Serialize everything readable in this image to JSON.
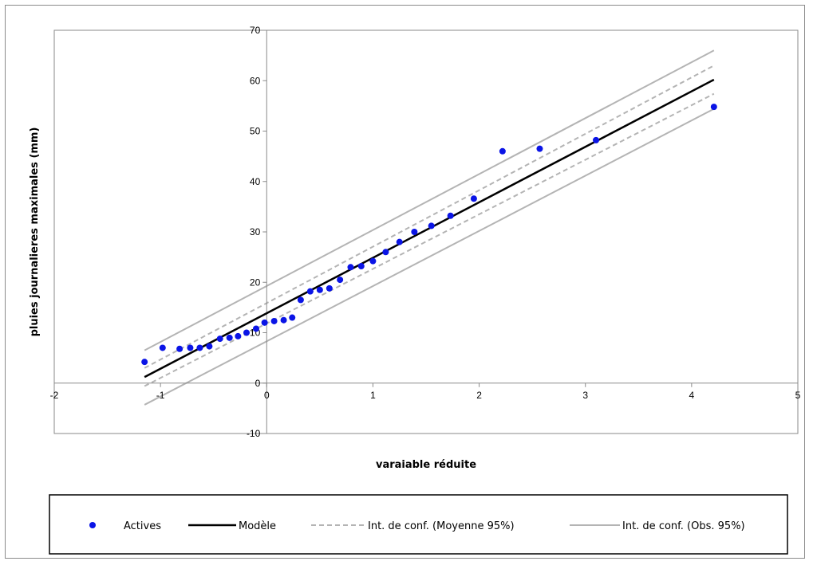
{
  "chart_data": {
    "type": "scatter",
    "title": "",
    "xlabel": "varaiable réduite",
    "ylabel": "pluies journalieres maximales (mm)",
    "xlim": [
      -2,
      5
    ],
    "ylim": [
      -10,
      70
    ],
    "x_ticks": [
      -2,
      -1,
      0,
      1,
      2,
      3,
      4,
      5
    ],
    "y_ticks": [
      -10,
      0,
      10,
      20,
      30,
      40,
      50,
      60,
      70
    ],
    "grid": false,
    "legend_position": "bottom",
    "colors": {
      "points": "#0a14e6",
      "model": "#000000",
      "ci_mean": "#b4b4b4",
      "ci_obs": "#b4b4b4",
      "frame": "#8a8a8a"
    },
    "series": [
      {
        "name": "Actives",
        "kind": "points",
        "x": [
          -1.15,
          -0.98,
          -0.82,
          -0.72,
          -0.63,
          -0.54,
          -0.44,
          -0.35,
          -0.27,
          -0.19,
          -0.1,
          -0.02,
          0.07,
          0.16,
          0.24,
          0.32,
          0.41,
          0.5,
          0.59,
          0.69,
          0.79,
          0.89,
          1.0,
          1.12,
          1.25,
          1.39,
          1.55,
          1.73,
          1.95,
          2.22,
          2.57,
          3.1,
          4.21
        ],
        "y": [
          4.2,
          7.0,
          6.8,
          7.0,
          7.0,
          7.3,
          8.8,
          9.0,
          9.3,
          10.0,
          10.8,
          12.0,
          12.3,
          12.5,
          13.0,
          16.5,
          18.2,
          18.5,
          18.8,
          20.5,
          23.0,
          23.2,
          24.2,
          26.0,
          28.0,
          30.0,
          31.2,
          33.2,
          36.6,
          46.0,
          46.5,
          48.2,
          54.8
        ]
      },
      {
        "name": "Modèle",
        "kind": "line",
        "x": [
          -1.15,
          4.21
        ],
        "y": [
          1.2,
          60.2
        ]
      },
      {
        "name": "Int. de conf. (Moyenne 95%)",
        "kind": "dashed-band",
        "x": [
          -1.15,
          4.21
        ],
        "upper": [
          3.0,
          63.0
        ],
        "lower": [
          -0.6,
          57.4
        ]
      },
      {
        "name": "Int. de conf. (Obs. 95%)",
        "kind": "band",
        "x": [
          -1.15,
          4.21
        ],
        "upper": [
          6.5,
          66.0
        ],
        "lower": [
          -4.3,
          54.4
        ]
      }
    ]
  }
}
